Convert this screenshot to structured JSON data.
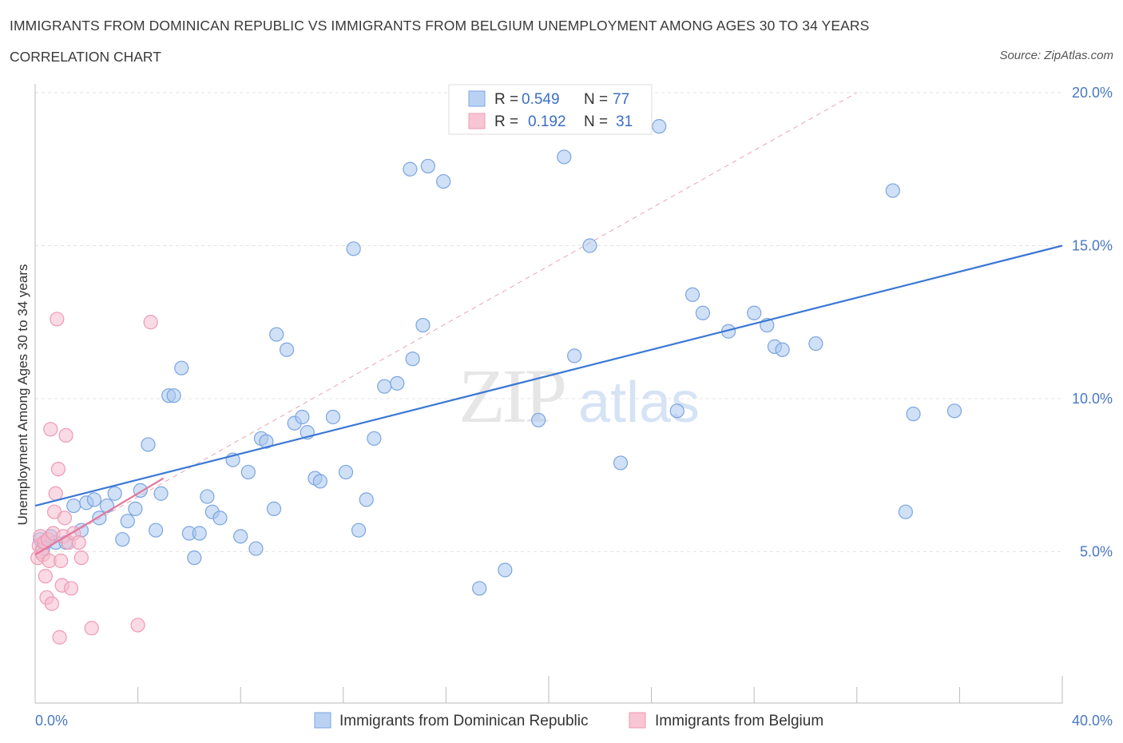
{
  "chart_data": {
    "type": "scatter",
    "title": "IMMIGRANTS FROM DOMINICAN REPUBLIC VS IMMIGRANTS FROM BELGIUM UNEMPLOYMENT AMONG AGES 30 TO 34 YEARS",
    "subtitle": "CORRELATION CHART",
    "source": "Source: ZipAtlas.com",
    "xlabel": "",
    "ylabel": "Unemployment Among Ages 30 to 34 years",
    "xlim": [
      0,
      40
    ],
    "ylim": [
      0,
      20.5
    ],
    "x_tick_labels": [
      "0.0%",
      "40.0%"
    ],
    "y_ticks": [
      5,
      10,
      15,
      20
    ],
    "y_tick_labels": [
      "5.0%",
      "10.0%",
      "15.0%",
      "20.0%"
    ],
    "watermark": "ZIPatlas",
    "legend": {
      "r_label": "R =",
      "n_label": "N =",
      "entries": [
        {
          "r": "0.549",
          "n": "77"
        },
        {
          "r": "0.192",
          "n": "31"
        }
      ]
    },
    "series": [
      {
        "name": "Immigrants from Dominican Republic",
        "color": "#a9c6ef",
        "stroke": "#7aa5e0",
        "trend": {
          "x": [
            0,
            40
          ],
          "y": [
            6.5,
            15.0
          ],
          "color": "#3a78d4"
        },
        "points": [
          [
            0.2,
            5.4
          ],
          [
            0.3,
            5.1
          ],
          [
            0.4,
            5.3
          ],
          [
            0.6,
            5.5
          ],
          [
            0.8,
            5.3
          ],
          [
            1.2,
            5.3
          ],
          [
            1.5,
            6.5
          ],
          [
            1.8,
            5.7
          ],
          [
            2.0,
            6.6
          ],
          [
            2.3,
            6.7
          ],
          [
            2.5,
            6.1
          ],
          [
            2.8,
            6.5
          ],
          [
            3.1,
            6.9
          ],
          [
            3.4,
            5.4
          ],
          [
            3.6,
            6.0
          ],
          [
            3.9,
            6.4
          ],
          [
            4.1,
            7.0
          ],
          [
            4.4,
            8.5
          ],
          [
            4.7,
            5.7
          ],
          [
            4.9,
            6.9
          ],
          [
            5.2,
            10.1
          ],
          [
            5.4,
            10.1
          ],
          [
            5.7,
            11.0
          ],
          [
            6.0,
            5.6
          ],
          [
            6.2,
            4.8
          ],
          [
            6.4,
            5.6
          ],
          [
            6.7,
            6.8
          ],
          [
            6.9,
            6.3
          ],
          [
            7.2,
            6.1
          ],
          [
            7.7,
            8.0
          ],
          [
            8.0,
            5.5
          ],
          [
            8.3,
            7.6
          ],
          [
            8.6,
            5.1
          ],
          [
            8.8,
            8.7
          ],
          [
            9.0,
            8.6
          ],
          [
            9.3,
            6.4
          ],
          [
            9.4,
            12.1
          ],
          [
            9.8,
            11.6
          ],
          [
            10.1,
            9.2
          ],
          [
            10.4,
            9.4
          ],
          [
            10.6,
            8.9
          ],
          [
            10.9,
            7.4
          ],
          [
            11.1,
            7.3
          ],
          [
            11.6,
            9.4
          ],
          [
            12.1,
            7.6
          ],
          [
            12.4,
            14.9
          ],
          [
            12.6,
            5.7
          ],
          [
            12.9,
            6.7
          ],
          [
            13.2,
            8.7
          ],
          [
            13.6,
            10.4
          ],
          [
            14.1,
            10.5
          ],
          [
            14.6,
            17.5
          ],
          [
            14.7,
            11.3
          ],
          [
            15.1,
            12.4
          ],
          [
            15.3,
            17.6
          ],
          [
            15.9,
            17.1
          ],
          [
            17.3,
            3.8
          ],
          [
            18.3,
            4.4
          ],
          [
            19.6,
            9.3
          ],
          [
            20.6,
            17.9
          ],
          [
            21.0,
            11.4
          ],
          [
            21.6,
            15.0
          ],
          [
            22.8,
            7.9
          ],
          [
            24.3,
            18.9
          ],
          [
            25.0,
            9.6
          ],
          [
            25.6,
            13.4
          ],
          [
            26.0,
            12.8
          ],
          [
            27.0,
            12.2
          ],
          [
            28.0,
            12.8
          ],
          [
            28.5,
            12.4
          ],
          [
            28.8,
            11.7
          ],
          [
            29.1,
            11.6
          ],
          [
            30.4,
            11.8
          ],
          [
            33.4,
            16.8
          ],
          [
            33.9,
            6.3
          ],
          [
            34.2,
            9.5
          ],
          [
            35.8,
            9.6
          ]
        ]
      },
      {
        "name": "Immigrants from Belgium",
        "color": "#f6bccd",
        "stroke": "#ee9ab4",
        "trend": {
          "x": [
            0,
            5.0
          ],
          "y": [
            4.9,
            7.4
          ],
          "color": "#e3779b"
        },
        "dashed_trend": {
          "x": [
            0,
            32.0
          ],
          "y": [
            4.9,
            20.0
          ],
          "color": "#e8a3b8"
        },
        "points": [
          [
            0.1,
            4.8
          ],
          [
            0.15,
            5.2
          ],
          [
            0.2,
            5.5
          ],
          [
            0.25,
            5.0
          ],
          [
            0.3,
            4.9
          ],
          [
            0.35,
            5.3
          ],
          [
            0.4,
            4.2
          ],
          [
            0.45,
            3.5
          ],
          [
            0.5,
            5.4
          ],
          [
            0.55,
            4.7
          ],
          [
            0.6,
            9.0
          ],
          [
            0.65,
            3.3
          ],
          [
            0.7,
            5.6
          ],
          [
            0.75,
            6.3
          ],
          [
            0.8,
            6.9
          ],
          [
            0.85,
            12.6
          ],
          [
            0.9,
            7.7
          ],
          [
            0.95,
            2.2
          ],
          [
            1.0,
            4.7
          ],
          [
            1.05,
            3.9
          ],
          [
            1.1,
            5.5
          ],
          [
            1.15,
            6.1
          ],
          [
            1.2,
            8.8
          ],
          [
            1.3,
            5.3
          ],
          [
            1.4,
            3.8
          ],
          [
            1.5,
            5.6
          ],
          [
            1.7,
            5.3
          ],
          [
            1.8,
            4.8
          ],
          [
            2.2,
            2.5
          ],
          [
            4.0,
            2.6
          ],
          [
            4.5,
            12.5
          ]
        ]
      }
    ]
  },
  "bottom_legend": [
    "Immigrants from Dominican Republic",
    "Immigrants from Belgium"
  ]
}
